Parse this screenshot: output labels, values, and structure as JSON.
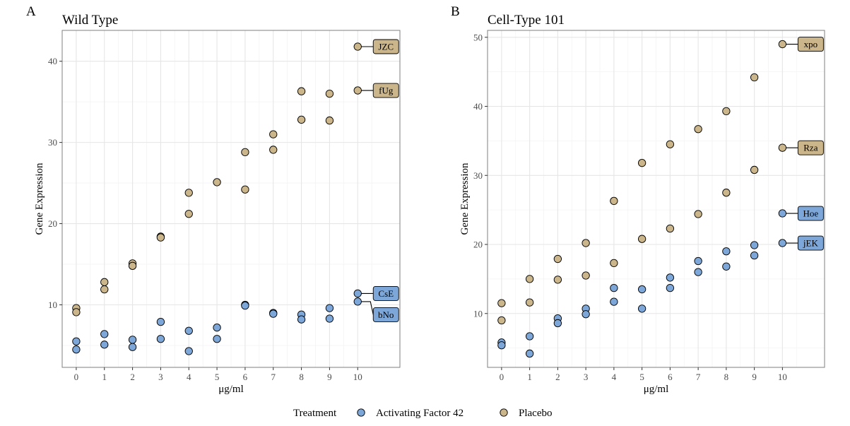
{
  "colors": {
    "Activating Factor 42": "#7da7d9",
    "Placebo": "#cbb58a",
    "point_stroke": "#000000",
    "grid_major": "#e6e6e6",
    "grid_minor": "#f3f3f3",
    "panel_border": "#7f7f7f"
  },
  "legend": {
    "title": "Treatment",
    "placement": "bottom",
    "items": [
      "Activating Factor 42",
      "Placebo"
    ]
  },
  "chart_data": [
    {
      "type": "scatter",
      "panel_tag": "A",
      "title": "Wild Type",
      "xlabel": "μg/ml",
      "ylabel": "Gene Expression",
      "xlim": [
        -0.5,
        11.5
      ],
      "ylim": [
        2.3,
        43.8
      ],
      "xticks": [
        0,
        1,
        2,
        3,
        4,
        5,
        6,
        7,
        8,
        9,
        10
      ],
      "yticks": [
        10,
        20,
        30,
        40
      ],
      "grid": true,
      "series": [
        {
          "name": "Activating Factor 42",
          "points": [
            [
              0,
              5.5
            ],
            [
              0,
              4.5
            ],
            [
              1,
              6.4
            ],
            [
              1,
              5.1
            ],
            [
              2,
              5.7
            ],
            [
              2,
              4.8
            ],
            [
              3,
              7.9
            ],
            [
              3,
              5.8
            ],
            [
              4,
              6.8
            ],
            [
              4,
              4.3
            ],
            [
              5,
              7.2
            ],
            [
              5,
              5.8
            ],
            [
              6,
              10.0
            ],
            [
              6,
              9.9
            ],
            [
              7,
              9.0
            ],
            [
              7,
              8.9
            ],
            [
              8,
              8.8
            ],
            [
              8,
              8.2
            ],
            [
              9,
              9.6
            ],
            [
              9,
              8.3
            ],
            [
              10,
              11.4
            ],
            [
              10,
              10.4
            ]
          ]
        },
        {
          "name": "Placebo",
          "points": [
            [
              0,
              9.6
            ],
            [
              0,
              9.1
            ],
            [
              1,
              12.8
            ],
            [
              1,
              11.9
            ],
            [
              2,
              15.1
            ],
            [
              2,
              14.8
            ],
            [
              3,
              18.4
            ],
            [
              3,
              18.3
            ],
            [
              4,
              23.8
            ],
            [
              4,
              21.2
            ],
            [
              5,
              25.1
            ],
            [
              6,
              28.8
            ],
            [
              6,
              24.2
            ],
            [
              7,
              31.0
            ],
            [
              7,
              29.1
            ],
            [
              8,
              36.3
            ],
            [
              8,
              32.8
            ],
            [
              9,
              36.0
            ],
            [
              9,
              32.7
            ],
            [
              10,
              41.8
            ],
            [
              10,
              36.4
            ]
          ]
        }
      ],
      "annotations": [
        {
          "label": "JZC",
          "x": 10,
          "y": 41.8,
          "series": "Placebo"
        },
        {
          "label": "fUg",
          "x": 10,
          "y": 36.4,
          "series": "Placebo"
        },
        {
          "label": "CsE",
          "x": 10,
          "y": 11.4,
          "series": "Activating Factor 42"
        },
        {
          "label": "bNo",
          "x": 10,
          "y": 10.4,
          "series": "Activating Factor 42"
        }
      ]
    },
    {
      "type": "scatter",
      "panel_tag": "B",
      "title": "Cell-Type 101",
      "xlabel": "μg/ml",
      "ylabel": "Gene Expression",
      "xlim": [
        -0.5,
        11.5
      ],
      "ylim": [
        2.2,
        51.0
      ],
      "xticks": [
        0,
        1,
        2,
        3,
        4,
        5,
        6,
        7,
        8,
        9,
        10
      ],
      "yticks": [
        10,
        20,
        30,
        40,
        50
      ],
      "grid": true,
      "series": [
        {
          "name": "Activating Factor 42",
          "points": [
            [
              0,
              5.8
            ],
            [
              0,
              5.4
            ],
            [
              1,
              6.7
            ],
            [
              1,
              4.2
            ],
            [
              2,
              9.3
            ],
            [
              2,
              8.6
            ],
            [
              3,
              10.7
            ],
            [
              3,
              9.9
            ],
            [
              4,
              13.7
            ],
            [
              4,
              11.7
            ],
            [
              5,
              13.5
            ],
            [
              5,
              10.7
            ],
            [
              6,
              15.2
            ],
            [
              6,
              13.7
            ],
            [
              7,
              17.6
            ],
            [
              7,
              16.0
            ],
            [
              8,
              19.0
            ],
            [
              8,
              16.8
            ],
            [
              9,
              19.9
            ],
            [
              9,
              18.4
            ],
            [
              10,
              24.5
            ],
            [
              10,
              20.2
            ]
          ]
        },
        {
          "name": "Placebo",
          "points": [
            [
              0,
              11.5
            ],
            [
              0,
              9.0
            ],
            [
              1,
              15.0
            ],
            [
              1,
              11.6
            ],
            [
              2,
              17.9
            ],
            [
              2,
              14.9
            ],
            [
              3,
              20.2
            ],
            [
              3,
              15.5
            ],
            [
              4,
              26.3
            ],
            [
              4,
              17.3
            ],
            [
              5,
              31.8
            ],
            [
              5,
              20.8
            ],
            [
              6,
              34.5
            ],
            [
              6,
              22.3
            ],
            [
              7,
              36.7
            ],
            [
              7,
              24.4
            ],
            [
              8,
              39.3
            ],
            [
              8,
              27.5
            ],
            [
              9,
              44.2
            ],
            [
              9,
              30.8
            ],
            [
              10,
              49.0
            ],
            [
              10,
              34.0
            ]
          ]
        }
      ],
      "annotations": [
        {
          "label": "xpo",
          "x": 10,
          "y": 49.0,
          "series": "Placebo"
        },
        {
          "label": "Rza",
          "x": 10,
          "y": 34.0,
          "series": "Placebo"
        },
        {
          "label": "Hoe",
          "x": 10,
          "y": 24.5,
          "series": "Activating Factor 42"
        },
        {
          "label": "jEK",
          "x": 10,
          "y": 20.2,
          "series": "Activating Factor 42"
        }
      ]
    }
  ]
}
